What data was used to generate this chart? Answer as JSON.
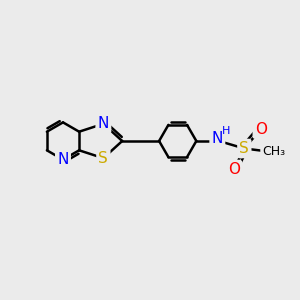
{
  "background_color": "#ebebeb",
  "bond_color": "#000000",
  "N_color": "#0000ff",
  "S_thia_color": "#ccaa00",
  "S_sul_color": "#ccaa00",
  "O_color": "#ff0000",
  "NH_color": "#0000cc",
  "bond_width": 1.8,
  "font_size": 10,
  "xlim": [
    0,
    10
  ],
  "ylim": [
    0,
    10
  ]
}
